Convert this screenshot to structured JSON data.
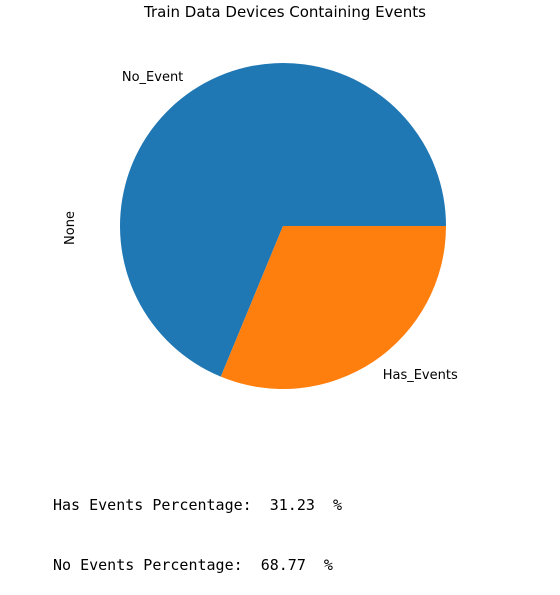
{
  "chart_data": {
    "type": "pie",
    "title": "Train Data Devices Containing Events",
    "ylabel": "None",
    "slices": [
      {
        "label": "No_Event",
        "value": 68.77,
        "color": "#1f77b4"
      },
      {
        "label": "Has_Events",
        "value": 31.23,
        "color": "#ff7f0e"
      }
    ],
    "start_angle_deg": 0,
    "direction": "counterclockwise"
  },
  "output": {
    "has_events_line": "Has Events Percentage:  31.23  %",
    "no_events_line": "No Events Percentage:  68.77  %"
  }
}
